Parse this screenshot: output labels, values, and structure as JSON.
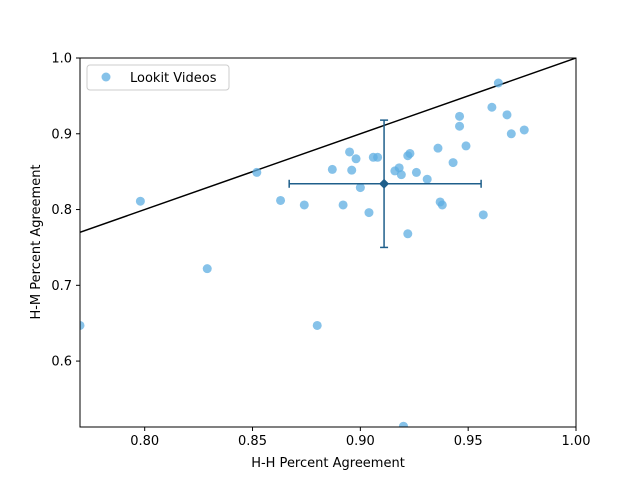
{
  "chart_data": {
    "type": "scatter",
    "xlabel": "H-H Percent Agreement",
    "ylabel": "H-M Percent Agreement",
    "xlim": [
      0.77,
      1.0
    ],
    "ylim": [
      0.513,
      1.0
    ],
    "grid": false,
    "legend_position": "top-left",
    "x_ticks": [
      0.8,
      0.85,
      0.9,
      0.95,
      1.0
    ],
    "x_tick_labels": [
      "0.80",
      "0.85",
      "0.90",
      "0.95",
      "1.00"
    ],
    "y_ticks": [
      0.6,
      0.7,
      0.8,
      0.9,
      1.0
    ],
    "y_tick_labels": [
      "0.6",
      "0.7",
      "0.8",
      "0.9",
      "1.0"
    ],
    "identity_line": true,
    "series": [
      {
        "name": "Lookit Videos",
        "color": "#5DADE2",
        "points": [
          [
            0.77,
            0.647
          ],
          [
            0.798,
            0.811
          ],
          [
            0.829,
            0.722
          ],
          [
            0.852,
            0.849
          ],
          [
            0.863,
            0.812
          ],
          [
            0.874,
            0.806
          ],
          [
            0.88,
            0.647
          ],
          [
            0.887,
            0.853
          ],
          [
            0.892,
            0.806
          ],
          [
            0.895,
            0.876
          ],
          [
            0.896,
            0.852
          ],
          [
            0.898,
            0.867
          ],
          [
            0.9,
            0.829
          ],
          [
            0.904,
            0.796
          ],
          [
            0.906,
            0.869
          ],
          [
            0.908,
            0.869
          ],
          [
            0.916,
            0.851
          ],
          [
            0.918,
            0.855
          ],
          [
            0.919,
            0.846
          ],
          [
            0.92,
            0.514
          ],
          [
            0.922,
            0.871
          ],
          [
            0.922,
            0.768
          ],
          [
            0.923,
            0.874
          ],
          [
            0.926,
            0.849
          ],
          [
            0.931,
            0.84
          ],
          [
            0.936,
            0.881
          ],
          [
            0.937,
            0.81
          ],
          [
            0.938,
            0.806
          ],
          [
            0.943,
            0.862
          ],
          [
            0.946,
            0.923
          ],
          [
            0.946,
            0.91
          ],
          [
            0.949,
            0.884
          ],
          [
            0.957,
            0.793
          ],
          [
            0.961,
            0.935
          ],
          [
            0.964,
            0.967
          ],
          [
            0.968,
            0.925
          ],
          [
            0.97,
            0.9
          ],
          [
            0.976,
            0.905
          ]
        ]
      }
    ],
    "summary_point": {
      "x": 0.911,
      "y": 0.834,
      "x_err": [
        0.867,
        0.956
      ],
      "y_err": [
        0.75,
        0.918
      ],
      "color": "#1F5F8B"
    }
  }
}
